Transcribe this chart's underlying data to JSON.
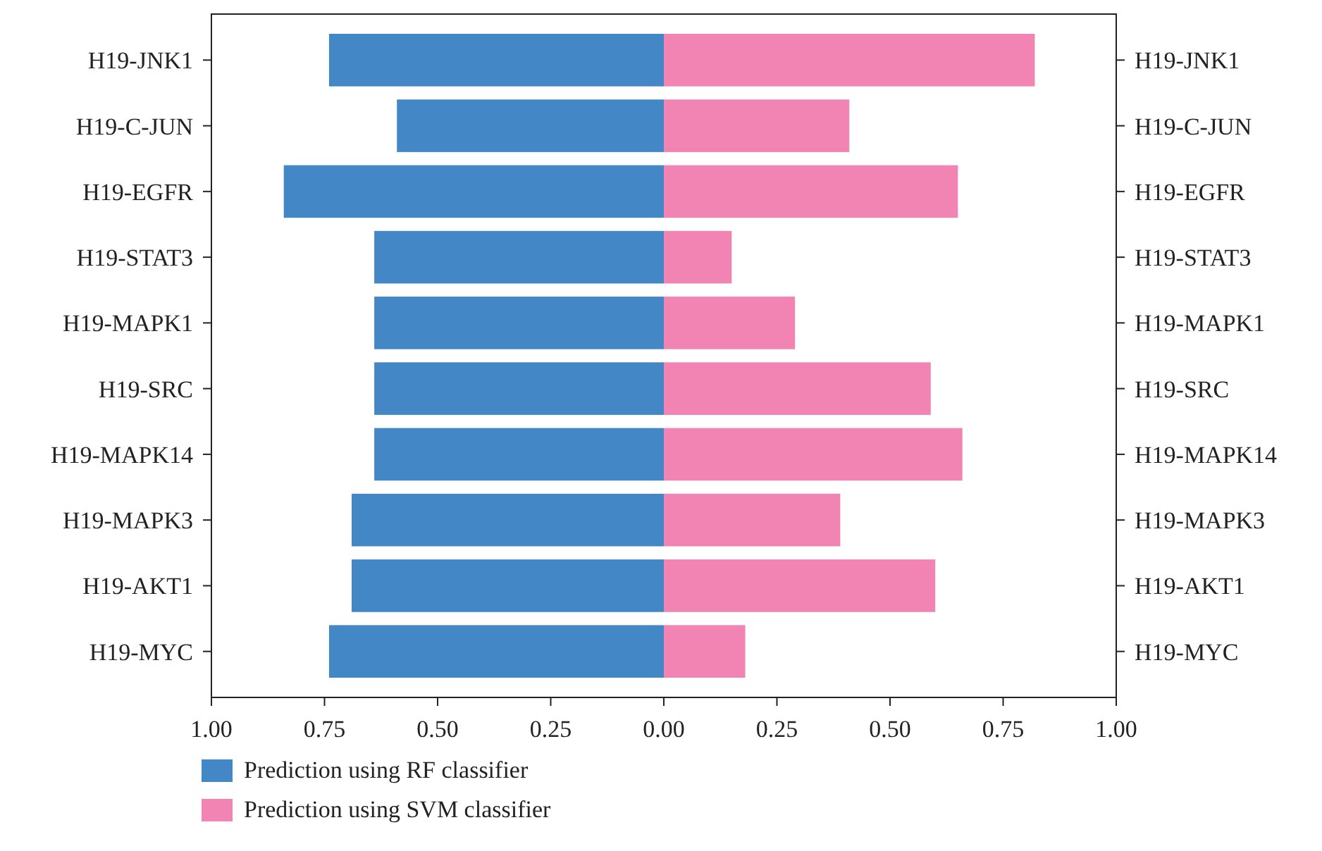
{
  "chart_data": {
    "type": "bar",
    "orientation": "horizontal",
    "stacked": true,
    "categories": [
      "H19-JNK1",
      "H19-C-JUN",
      "H19-EGFR",
      "H19-STAT3",
      "H19-MAPK1",
      "H19-SRC",
      "H19-MAPK14",
      "H19-MAPK3",
      "H19-AKT1",
      "H19-MYC"
    ],
    "series": [
      {
        "name": "Prediction using RF classifier",
        "color": "#4387c7",
        "values": [
          -0.74,
          -0.59,
          -0.84,
          -0.64,
          -0.64,
          -0.64,
          -0.64,
          -0.69,
          -0.69,
          -0.74
        ]
      },
      {
        "name": "Prediction using SVM classifier",
        "color": "#f284b4",
        "values": [
          0.82,
          0.41,
          0.65,
          0.15,
          0.29,
          0.59,
          0.66,
          0.39,
          0.6,
          0.18
        ]
      }
    ],
    "xlim": [
      -1,
      1
    ],
    "xticks": [
      {
        "value": -1,
        "label": "1.00"
      },
      {
        "value": -0.75,
        "label": "0.75"
      },
      {
        "value": -0.5,
        "label": "0.50"
      },
      {
        "value": -0.25,
        "label": "0.25"
      },
      {
        "value": 0,
        "label": "0.00"
      },
      0.25,
      {
        "value": 0.5,
        "label": "0.50"
      },
      0.75,
      {
        "value": 1,
        "label": "1.00"
      }
    ],
    "grid": false,
    "legend": "bottom left"
  }
}
